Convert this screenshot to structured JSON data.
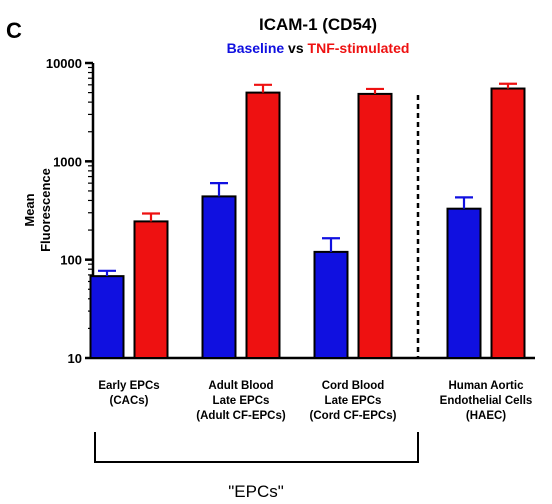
{
  "panel_letter": "C",
  "chart_data": {
    "type": "bar",
    "title": "ICAM-1 (CD54)",
    "subtitle": {
      "parts": [
        {
          "text": "Baseline",
          "color": "#1010e0"
        },
        {
          "text": " vs ",
          "color": "#000000"
        },
        {
          "text": "TNF-stimulated",
          "color": "#ee1111"
        }
      ]
    },
    "ylabel_lines": [
      "Mean",
      "Fluorescence"
    ],
    "y_scale": "log",
    "ylim": [
      10,
      10000
    ],
    "y_ticks": [
      {
        "value": 10,
        "label": "10"
      },
      {
        "value": 100,
        "label": "100"
      },
      {
        "value": 1000,
        "label": "1000"
      },
      {
        "value": 10000,
        "label": "10000"
      }
    ],
    "categories": [
      {
        "lines": [
          "Early EPCs",
          "(CACs)"
        ]
      },
      {
        "lines": [
          "Adult Blood",
          "Late  EPCs",
          "(Adult CF-EPCs)"
        ]
      },
      {
        "lines": [
          "Cord Blood",
          "Late EPCs",
          "(Cord CF-EPCs)"
        ]
      },
      {
        "lines": [
          "Human Aortic",
          "Endothelial Cells",
          "(HAEC)"
        ]
      }
    ],
    "series": [
      {
        "name": "Baseline",
        "color": "#1010e0",
        "values": [
          68,
          440,
          120,
          330
        ],
        "errors": [
          77,
          600,
          165,
          430
        ]
      },
      {
        "name": "TNF-stimulated",
        "color": "#ee1111",
        "values": [
          245,
          5000,
          4850,
          5500
        ],
        "errors": [
          295,
          6000,
          5450,
          6150
        ]
      }
    ],
    "divider": {
      "after_category": 2,
      "style": "dashed"
    },
    "group_bracket": {
      "categories": [
        0,
        1,
        2
      ],
      "label": "\"EPCs\""
    },
    "grid": false,
    "legend": "none"
  }
}
